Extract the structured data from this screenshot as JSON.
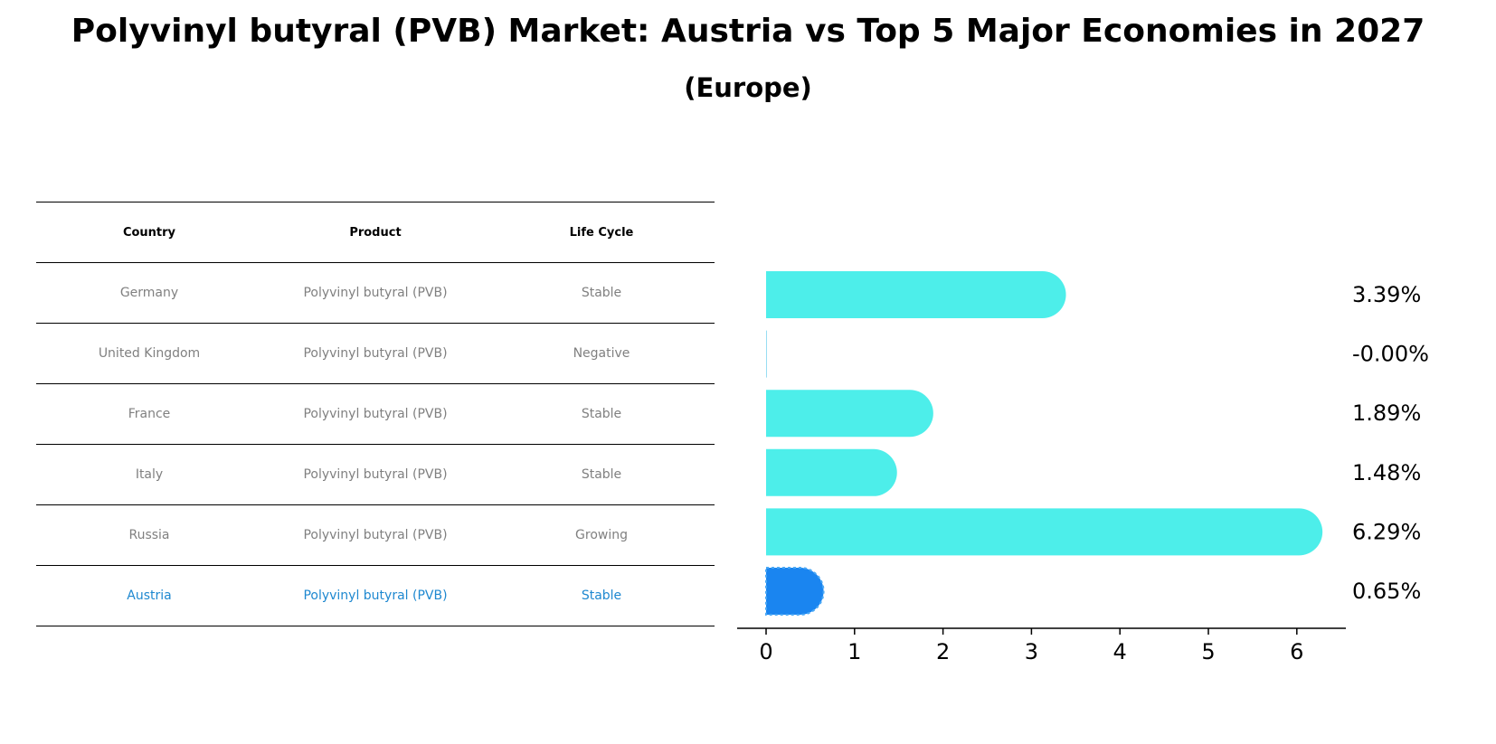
{
  "header": {
    "title": "Polyvinyl butyral (PVB) Market: Austria vs Top 5 Major Economies in 2027",
    "subtitle": "(Europe)"
  },
  "table": {
    "columns": [
      "Country",
      "Product",
      "Life Cycle"
    ],
    "rows": [
      {
        "country": "Germany",
        "product": "Polyvinyl butyral (PVB)",
        "life_cycle": "Stable"
      },
      {
        "country": "United Kingdom",
        "product": "Polyvinyl butyral (PVB)",
        "life_cycle": "Negative"
      },
      {
        "country": "France",
        "product": "Polyvinyl butyral (PVB)",
        "life_cycle": "Stable"
      },
      {
        "country": "Italy",
        "product": "Polyvinyl butyral (PVB)",
        "life_cycle": "Stable"
      },
      {
        "country": "Russia",
        "product": "Polyvinyl butyral (PVB)",
        "life_cycle": "Growing"
      },
      {
        "country": "Austria",
        "product": "Polyvinyl butyral (PVB)",
        "life_cycle": "Stable"
      }
    ]
  },
  "chart_data": {
    "type": "bar",
    "orientation": "horizontal",
    "categories": [
      "Germany",
      "United Kingdom",
      "France",
      "Italy",
      "Russia",
      "Austria"
    ],
    "values": [
      3.39,
      -0.0,
      1.89,
      1.48,
      6.29,
      0.65
    ],
    "value_labels": [
      "3.39%",
      "-0.00%",
      "1.89%",
      "1.48%",
      "6.29%",
      "0.65%"
    ],
    "xlim": [
      0,
      6.5
    ],
    "xticks": [
      0,
      1,
      2,
      3,
      4,
      5,
      6
    ],
    "xlabel": "",
    "ylabel": "",
    "grid": false,
    "colors": {
      "default": "#4deeea",
      "highlight": "#1a85f0"
    },
    "highlight_category": "Austria"
  }
}
